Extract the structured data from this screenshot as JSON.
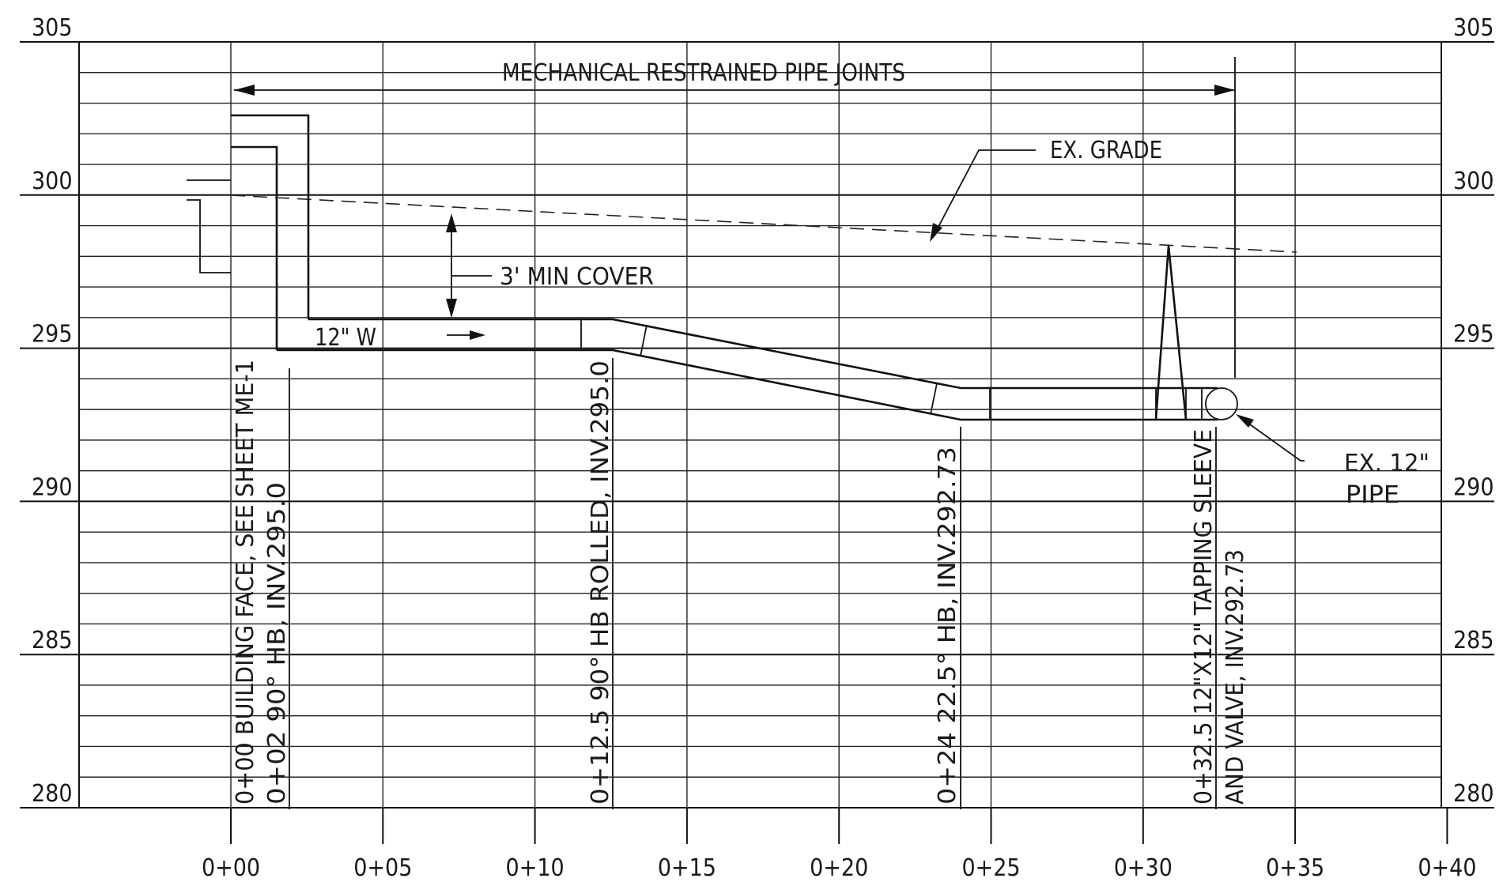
{
  "chart_data": {
    "type": "profile",
    "x_axis": {
      "ticks": [
        "0+00",
        "0+05",
        "0+10",
        "0+15",
        "0+20",
        "0+25",
        "0+30",
        "0+35",
        "0+40"
      ]
    },
    "y_axis": {
      "ticks": [
        "305",
        "300",
        "295",
        "290",
        "285",
        "280"
      ],
      "range": [
        280,
        305
      ]
    },
    "header_note": "MECHANICAL RESTRAINED PIPE JOINTS",
    "existing_grade_label": "EX. GRADE",
    "cover_label": "3' MIN COVER",
    "pipe_label": "12\" W",
    "existing_pipe_label": [
      "EX. 12\"",
      "PIPE"
    ],
    "vertical_notes": [
      {
        "text": "0+00 BUILDING FACE, SEE SHEET ME-1"
      },
      {
        "text": "0+02 90° HB, INV.295.0"
      },
      {
        "text": "0+12.5 90° HB ROLLED, INV.295.0"
      },
      {
        "text": "0+24 22.5° HB, INV.292.73"
      },
      {
        "text": "0+32.5 12\"X12\" TAPPING SLEEVE"
      },
      {
        "text": "AND VALVE, INV.292.73"
      }
    ],
    "pipe_invert": [
      {
        "station": "0+02",
        "elev": 295.0
      },
      {
        "station": "0+12.5",
        "elev": 295.0
      },
      {
        "station": "0+24",
        "elev": 292.73
      },
      {
        "station": "0+32.5",
        "elev": 292.73
      }
    ],
    "existing_grade": [
      {
        "station": "0+00",
        "elev": 299.9
      },
      {
        "station": "0+35",
        "elev": 298.2
      }
    ]
  }
}
